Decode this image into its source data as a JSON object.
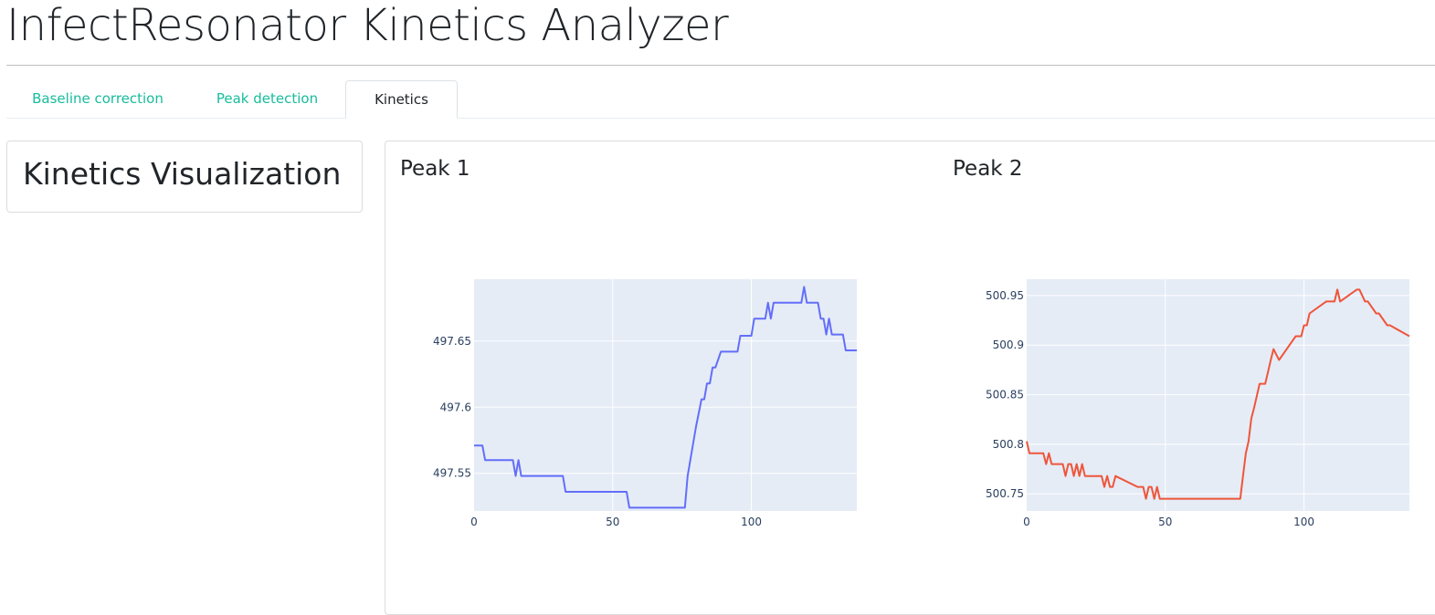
{
  "app": {
    "title": "InfectResonator Kinetics Analyzer"
  },
  "tabs": [
    {
      "label": "Baseline correction",
      "active": false
    },
    {
      "label": "Peak detection",
      "active": false
    },
    {
      "label": "Kinetics",
      "active": true
    }
  ],
  "sidebar": {
    "title": "Kinetics Visualization"
  },
  "colors": {
    "accent": "#18bc9c",
    "plot_bg": "#e5ecf6",
    "peak1_line": "#636efa",
    "peak2_line": "#ef553b",
    "tick_text": "#2a3f5f"
  },
  "chart_data": [
    {
      "type": "line",
      "title": "Peak 1",
      "xlabel": "",
      "ylabel": "",
      "xlim": [
        0,
        138
      ],
      "ylim": [
        497.5215,
        497.6968
      ],
      "xticks": [
        0,
        50,
        100
      ],
      "yticks": [
        497.55,
        497.6,
        497.65
      ],
      "ytick_labels": [
        "497.55",
        "497.6",
        "497.65"
      ],
      "grid": true,
      "x": [
        0,
        3,
        4,
        14,
        15,
        16,
        17,
        32,
        33,
        55,
        56,
        76,
        77,
        80,
        82,
        83,
        84,
        85,
        86,
        87,
        89,
        90,
        91,
        95,
        96,
        100,
        101,
        105,
        106,
        107,
        108,
        118,
        119,
        120,
        124,
        125,
        126,
        127,
        128,
        129,
        133,
        134,
        138
      ],
      "y": [
        497.571,
        497.571,
        497.56,
        497.56,
        497.548,
        497.56,
        497.548,
        497.548,
        497.536,
        497.536,
        497.524,
        497.524,
        497.548,
        497.585,
        497.606,
        497.606,
        497.618,
        497.618,
        497.63,
        497.63,
        497.642,
        497.642,
        497.642,
        497.642,
        497.654,
        497.654,
        497.667,
        497.667,
        497.679,
        497.667,
        497.679,
        497.679,
        497.691,
        497.679,
        497.679,
        497.667,
        497.667,
        497.655,
        497.667,
        497.655,
        497.655,
        497.643,
        497.643
      ]
    },
    {
      "type": "line",
      "title": "Peak 2",
      "xlabel": "",
      "ylabel": "",
      "xlim": [
        0,
        138
      ],
      "ylim": [
        500.7327,
        500.9665
      ],
      "xticks": [
        0,
        50,
        100
      ],
      "yticks": [
        500.75,
        500.8,
        500.85,
        500.9,
        500.95
      ],
      "ytick_labels": [
        "500.75",
        "500.8",
        "500.85",
        "500.9",
        "500.95"
      ],
      "grid": true,
      "x": [
        0,
        1,
        6,
        7,
        8,
        9,
        10,
        13,
        14,
        15,
        16,
        17,
        18,
        19,
        20,
        21,
        27,
        28,
        29,
        30,
        31,
        32,
        40,
        41,
        42,
        43,
        44,
        45,
        46,
        47,
        48,
        77,
        78,
        79,
        80,
        81,
        82,
        84,
        86,
        87,
        88,
        89,
        91,
        97,
        98,
        99,
        100,
        101,
        102,
        108,
        109,
        110,
        111,
        112,
        113,
        119,
        120,
        122,
        123,
        126,
        127,
        130,
        131,
        138
      ],
      "y": [
        500.803,
        500.791,
        500.791,
        500.78,
        500.791,
        500.78,
        500.78,
        500.78,
        500.768,
        500.78,
        500.78,
        500.768,
        500.78,
        500.768,
        500.78,
        500.768,
        500.768,
        500.757,
        500.768,
        500.757,
        500.757,
        500.768,
        500.757,
        500.757,
        500.757,
        500.745,
        500.757,
        500.757,
        500.745,
        500.757,
        500.745,
        500.745,
        500.768,
        500.791,
        500.803,
        500.826,
        500.837,
        500.861,
        500.861,
        500.873,
        500.885,
        500.896,
        500.885,
        500.909,
        500.909,
        500.909,
        500.92,
        500.92,
        500.932,
        500.944,
        500.944,
        500.944,
        500.944,
        500.956,
        500.944,
        500.956,
        500.956,
        500.944,
        500.944,
        500.932,
        500.932,
        500.92,
        500.92,
        500.909
      ]
    }
  ]
}
